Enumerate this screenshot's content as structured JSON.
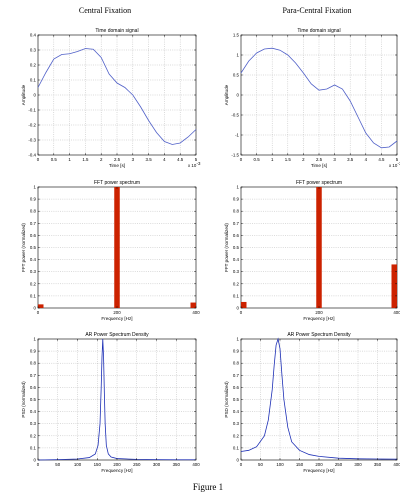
{
  "figure": {
    "caption": "Figure 1",
    "columns": [
      "Central Fixation",
      "Para-Central Fixation"
    ]
  },
  "colors": {
    "time_line": "#5060c8",
    "fft_bar": "#cc2200",
    "psd_line": "#1d2fb5"
  },
  "chart_data": [
    {
      "id": "time-central",
      "type": "line",
      "column": 0,
      "row": 0,
      "title": "Time domain signal",
      "xlabel": "Time [s]",
      "ylabel": "Amplitude",
      "xlim": [
        0,
        5
      ],
      "ylim": [
        -0.4,
        0.4
      ],
      "xticks": [
        0,
        0.5,
        1,
        1.5,
        2,
        2.5,
        3,
        3.5,
        4,
        4.5,
        5
      ],
      "xtick_labels": [
        "0",
        "0.5",
        "1",
        "1.5",
        "2",
        "2.5",
        "3",
        "3.5",
        "4",
        "4.5",
        "5"
      ],
      "yticks": [
        -0.4,
        -0.3,
        -0.2,
        -0.1,
        0,
        0.1,
        0.2,
        0.3,
        0.4
      ],
      "ytick_labels": [
        "-0.4",
        "-0.3",
        "-0.2",
        "-0.1",
        "0",
        "0.1",
        "0.2",
        "0.3",
        "0.4"
      ],
      "x_exponent": "x 10",
      "x_exponent_power": "-3",
      "grid": true,
      "series": [
        {
          "x": [
            0,
            0.25,
            0.5,
            0.75,
            1,
            1.25,
            1.5,
            1.75,
            2,
            2.25,
            2.5,
            2.75,
            3,
            3.25,
            3.5,
            3.75,
            4,
            4.25,
            4.5,
            4.75,
            5
          ],
          "y": [
            0.05,
            0.15,
            0.24,
            0.27,
            0.275,
            0.29,
            0.31,
            0.305,
            0.25,
            0.14,
            0.08,
            0.05,
            0.0,
            -0.08,
            -0.17,
            -0.25,
            -0.31,
            -0.33,
            -0.32,
            -0.28,
            -0.23
          ]
        }
      ]
    },
    {
      "id": "time-para",
      "type": "line",
      "column": 1,
      "row": 0,
      "title": "Time domain signal",
      "xlabel": "Time [s]",
      "ylabel": "Amplitude",
      "xlim": [
        0,
        5
      ],
      "ylim": [
        -1.5,
        1.5
      ],
      "xticks": [
        0,
        0.5,
        1,
        1.5,
        2,
        2.5,
        3,
        3.5,
        4,
        4.5,
        5
      ],
      "xtick_labels": [
        "0",
        "0.5",
        "1",
        "1.5",
        "2",
        "2.5",
        "3",
        "3.5",
        "4",
        "4.5",
        "5"
      ],
      "yticks": [
        -1.5,
        -1,
        -0.5,
        0,
        0.5,
        1,
        1.5
      ],
      "ytick_labels": [
        "-1.5",
        "-1",
        "-0.5",
        "0",
        "0.5",
        "1",
        "1.5"
      ],
      "x_exponent": "x 10",
      "x_exponent_power": "-3",
      "grid": true,
      "series": [
        {
          "x": [
            0,
            0.25,
            0.5,
            0.75,
            1,
            1.25,
            1.5,
            1.75,
            2,
            2.25,
            2.5,
            2.75,
            3,
            3.25,
            3.5,
            3.75,
            4,
            4.25,
            4.5,
            4.75,
            5
          ],
          "y": [
            0.55,
            0.85,
            1.05,
            1.15,
            1.17,
            1.12,
            1.0,
            0.8,
            0.55,
            0.28,
            0.12,
            0.15,
            0.25,
            0.15,
            -0.15,
            -0.55,
            -0.95,
            -1.2,
            -1.32,
            -1.3,
            -1.15
          ]
        }
      ]
    },
    {
      "id": "fft-central",
      "type": "bar",
      "column": 0,
      "row": 1,
      "title": "FFT power spectrum",
      "xlabel": "Frequency [Hz]",
      "ylabel": "FFT power (normalized)",
      "xlim": [
        0,
        400
      ],
      "ylim": [
        0,
        1
      ],
      "xticks": [
        0,
        200,
        400
      ],
      "xtick_labels": [
        "0",
        "200",
        "400"
      ],
      "yticks": [
        0,
        0.1,
        0.2,
        0.3,
        0.4,
        0.5,
        0.6,
        0.7,
        0.8,
        0.9,
        1
      ],
      "ytick_labels": [
        "0",
        "0.1",
        "0.2",
        "0.3",
        "0.4",
        "0.5",
        "0.6",
        "0.7",
        "0.8",
        "0.9",
        "1"
      ],
      "grid": true,
      "bars": [
        {
          "x": 0,
          "value": 0.03
        },
        {
          "x": 200,
          "value": 1.0
        },
        {
          "x": 400,
          "value": 0.045
        }
      ]
    },
    {
      "id": "fft-para",
      "type": "bar",
      "column": 1,
      "row": 1,
      "title": "FFT power spectrum",
      "xlabel": "Frequency [Hz]",
      "ylabel": "FFT power (normalized)",
      "xlim": [
        0,
        400
      ],
      "ylim": [
        0,
        1
      ],
      "xticks": [
        0,
        200,
        400
      ],
      "xtick_labels": [
        "0",
        "200",
        "400"
      ],
      "yticks": [
        0,
        0.1,
        0.2,
        0.3,
        0.4,
        0.5,
        0.6,
        0.7,
        0.8,
        0.9,
        1
      ],
      "ytick_labels": [
        "0",
        "0.1",
        "0.2",
        "0.3",
        "0.4",
        "0.5",
        "0.6",
        "0.7",
        "0.8",
        "0.9",
        "1"
      ],
      "grid": true,
      "bars": [
        {
          "x": 0,
          "value": 0.05
        },
        {
          "x": 200,
          "value": 1.0
        },
        {
          "x": 400,
          "value": 0.36
        }
      ]
    },
    {
      "id": "psd-central",
      "type": "line",
      "column": 0,
      "row": 2,
      "title": "AR Power Spectrum Density",
      "xlabel": "Frequency [Hz]",
      "ylabel": "PSD (normalized)",
      "xlim": [
        0,
        400
      ],
      "ylim": [
        0,
        1
      ],
      "xticks": [
        0,
        50,
        100,
        150,
        200,
        250,
        300,
        350,
        400
      ],
      "xtick_labels": [
        "0",
        "50",
        "100",
        "150",
        "200",
        "250",
        "300",
        "350",
        "400"
      ],
      "yticks": [
        0,
        0.1,
        0.2,
        0.3,
        0.4,
        0.5,
        0.6,
        0.7,
        0.8,
        0.9,
        1
      ],
      "ytick_labels": [
        "0",
        "0.1",
        "0.2",
        "0.3",
        "0.4",
        "0.5",
        "0.6",
        "0.7",
        "0.8",
        "0.9",
        "1"
      ],
      "grid": true,
      "series": [
        {
          "x": [
            0,
            50,
            100,
            130,
            145,
            152,
            157,
            160,
            162,
            164,
            166,
            168,
            170,
            173,
            178,
            185,
            200,
            250,
            300,
            350,
            400
          ],
          "y": [
            0.0,
            0.003,
            0.008,
            0.02,
            0.05,
            0.12,
            0.3,
            0.6,
            0.85,
            1.0,
            0.85,
            0.55,
            0.3,
            0.12,
            0.05,
            0.025,
            0.012,
            0.005,
            0.003,
            0.002,
            0.002
          ]
        }
      ]
    },
    {
      "id": "psd-para",
      "type": "line",
      "column": 1,
      "row": 2,
      "title": "AR Power Spectrum Density",
      "xlabel": "Frequency [Hz]",
      "ylabel": "PSD (normalized)",
      "xlim": [
        0,
        400
      ],
      "ylim": [
        0,
        1
      ],
      "xticks": [
        0,
        50,
        100,
        150,
        200,
        250,
        300,
        350,
        400
      ],
      "xtick_labels": [
        "0",
        "50",
        "100",
        "150",
        "200",
        "250",
        "300",
        "350",
        "400"
      ],
      "yticks": [
        0,
        0.1,
        0.2,
        0.3,
        0.4,
        0.5,
        0.6,
        0.7,
        0.8,
        0.9,
        1
      ],
      "ytick_labels": [
        "0",
        "0.1",
        "0.2",
        "0.3",
        "0.4",
        "0.5",
        "0.6",
        "0.7",
        "0.8",
        "0.9",
        "1"
      ],
      "grid": true,
      "series": [
        {
          "x": [
            0,
            20,
            40,
            60,
            70,
            80,
            85,
            90,
            95,
            100,
            105,
            110,
            120,
            130,
            150,
            175,
            200,
            250,
            300,
            350,
            400
          ],
          "y": [
            0.07,
            0.08,
            0.11,
            0.2,
            0.33,
            0.58,
            0.78,
            0.95,
            1.0,
            0.92,
            0.7,
            0.5,
            0.27,
            0.15,
            0.08,
            0.045,
            0.03,
            0.015,
            0.01,
            0.008,
            0.007
          ]
        }
      ]
    }
  ]
}
